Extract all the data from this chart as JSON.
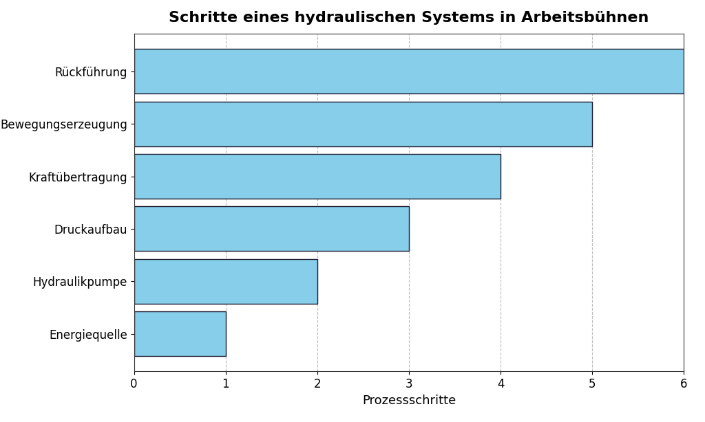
{
  "title": "Schritte eines hydraulischen Systems in Arbeitsbühnen",
  "categories": [
    "Energiequelle",
    "Hydraulikpumpe",
    "Druckaufbau",
    "Kraftübertragung",
    "Bewegungserzeugung",
    "Rückführung"
  ],
  "values": [
    1,
    2,
    3,
    4,
    5,
    6
  ],
  "bar_color": "#87CEEB",
  "bar_edgecolor": "#1a1a2e",
  "xlabel": "Prozessschritte",
  "xlim": [
    0,
    6
  ],
  "xticks": [
    0,
    1,
    2,
    3,
    4,
    5,
    6
  ],
  "title_fontsize": 16,
  "label_fontsize": 13,
  "tick_fontsize": 12,
  "background_color": "#ffffff",
  "grid_color": "#aaaaaa",
  "bar_height": 0.85
}
